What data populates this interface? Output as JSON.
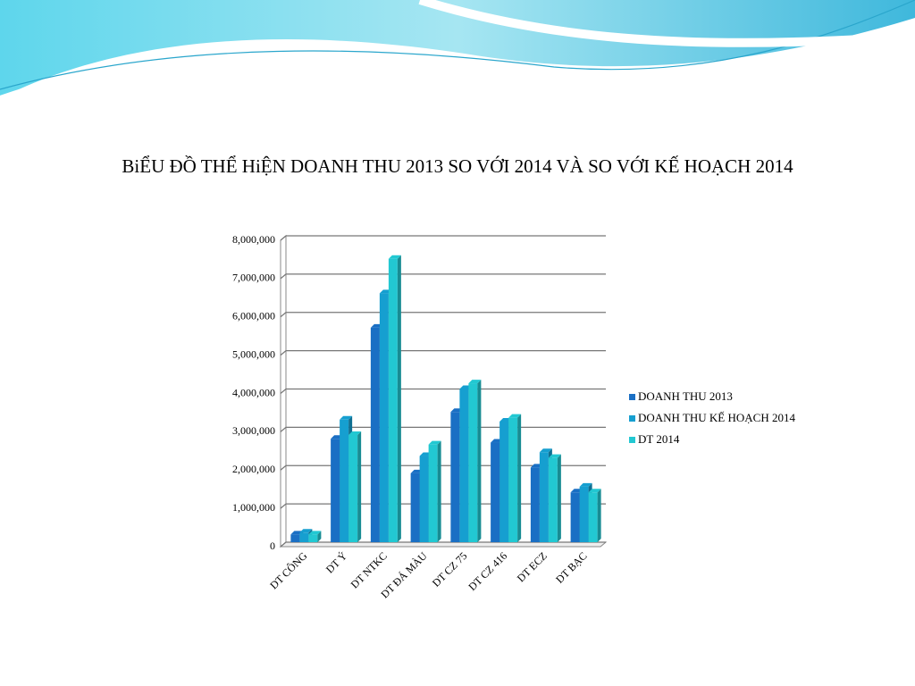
{
  "chart_data": {
    "type": "bar",
    "title": "BiỂU ĐỒ THỂ HiỆN DOANH THU 2013 SO VỚI 2014 VÀ SO VỚI KẾ HOẠCH 2014",
    "categories": [
      "DT CÔNG",
      "DT Ý",
      "DT NTKC",
      "DT ĐÁ MÀU",
      "DT CZ 75",
      "DT CZ 416",
      "DT ECZ",
      "DT BẠC"
    ],
    "series": [
      {
        "name": "DOANH THU 2013",
        "color": "#1a6fc4",
        "values": [
          200000,
          2700000,
          5600000,
          1800000,
          3400000,
          2600000,
          1950000,
          1300000
        ]
      },
      {
        "name": "DOANH THU KẾ HOẠCH 2014",
        "color": "#169fd0",
        "values": [
          250000,
          3200000,
          6500000,
          2250000,
          4000000,
          3150000,
          2350000,
          1450000
        ]
      },
      {
        "name": "DT 2014",
        "color": "#22c8d2",
        "values": [
          200000,
          2800000,
          7400000,
          2550000,
          4150000,
          3250000,
          2200000,
          1300000
        ]
      }
    ],
    "ylim": [
      0,
      8000000
    ],
    "yticks": [
      0,
      {
        "value": 1000000,
        "label": "1,000,000"
      },
      {
        "value": 2000000,
        "label": "2,000,000"
      },
      {
        "value": 3000000,
        "label": "3,000,000"
      },
      {
        "value": 4000000,
        "label": "4,000,000"
      },
      {
        "value": 5000000,
        "label": "5,000,000"
      },
      {
        "value": 6000000,
        "label": "6,000,000"
      },
      {
        "value": 7000000,
        "label": "7,000,000"
      },
      {
        "value": 8000000,
        "label": "8,000,000"
      }
    ],
    "grid": true,
    "legend": "right"
  }
}
